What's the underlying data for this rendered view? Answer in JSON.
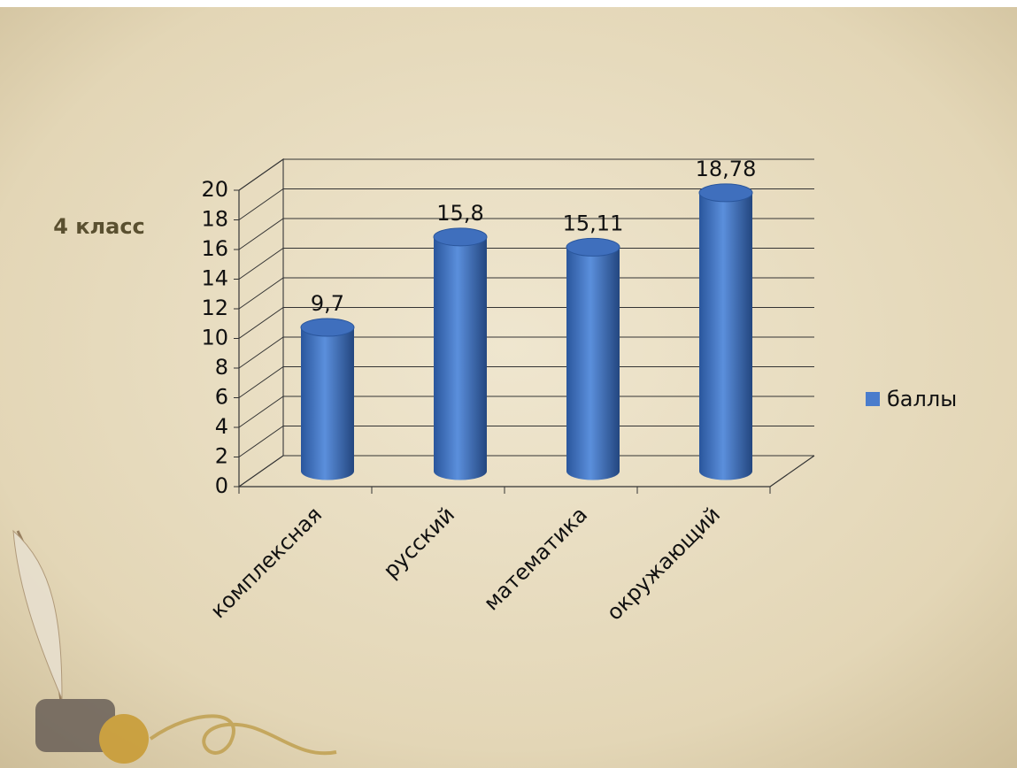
{
  "chart_data": {
    "type": "bar",
    "side_label": "4 класс",
    "categories": [
      "комплексная",
      "русский",
      "математика",
      "окружающий"
    ],
    "series": [
      {
        "name": "баллы",
        "color": "#4a7ccc",
        "values": [
          9.7,
          15.8,
          15.11,
          18.78
        ],
        "value_labels": [
          "9,7",
          "15,8",
          "15,11",
          "18,78"
        ]
      }
    ],
    "ylim": [
      0,
      20
    ],
    "yticks": [
      0,
      2,
      4,
      6,
      8,
      10,
      12,
      14,
      16,
      18,
      20
    ],
    "grid": true,
    "legend": "right"
  }
}
